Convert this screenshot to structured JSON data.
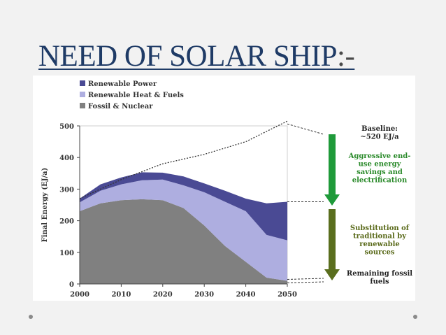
{
  "slide": {
    "title": "NEED OF SOLAR SHIP",
    "title_suffix": ":-"
  },
  "chart_data": {
    "type": "area",
    "title": "",
    "xlabel": "",
    "ylabel": "Final Energy (EJ/a)",
    "xlim": [
      2000,
      2050
    ],
    "ylim": [
      0,
      500
    ],
    "x_ticks": [
      2000,
      2010,
      2020,
      2030,
      2040,
      2050
    ],
    "y_ticks": [
      0,
      100,
      200,
      300,
      400,
      500
    ],
    "x": [
      2000,
      2005,
      2010,
      2015,
      2020,
      2025,
      2030,
      2035,
      2040,
      2045,
      2050
    ],
    "series": [
      {
        "name": "Fossil & Nuclear",
        "color": "#808080",
        "values": [
          230,
          255,
          265,
          268,
          265,
          240,
          185,
          120,
          70,
          20,
          10
        ]
      },
      {
        "name": "Renewable Heat & Fuels",
        "color": "#aeaee0",
        "values": [
          28,
          40,
          50,
          60,
          65,
          72,
          105,
          140,
          160,
          135,
          128
        ]
      },
      {
        "name": "Renewable Power",
        "color": "#4a4a94",
        "values": [
          12,
          20,
          22,
          25,
          22,
          28,
          28,
          35,
          40,
          100,
          122
        ]
      }
    ],
    "baseline_line": {
      "name": "Baseline",
      "x": [
        2000,
        2010,
        2020,
        2030,
        2040,
        2050
      ],
      "values": [
        270,
        330,
        380,
        410,
        450,
        515
      ]
    },
    "legend": {
      "position": "top-left",
      "entries": [
        "Renewable Power",
        "Renewable Heat & Fuels",
        "Fossil & Nuclear"
      ]
    },
    "annotations": [
      {
        "text": [
          "Baseline:",
          "~520 EJ/a"
        ],
        "color": "#222222"
      },
      {
        "text": [
          "Aggressive end-",
          "use energy",
          "savings and",
          "electrification"
        ],
        "color": "#2a8a2a"
      },
      {
        "text": [
          "Substitution of",
          "traditional  by",
          "renewable",
          "sources"
        ],
        "color": "#5a6a1a"
      },
      {
        "text": [
          "Remaining fossil",
          "fuels"
        ],
        "color": "#222222"
      }
    ],
    "arrows": [
      {
        "from": 515,
        "to": 262,
        "color": "#1f9a3a"
      },
      {
        "from": 262,
        "to": 10,
        "color": "#5a6e1e"
      }
    ]
  }
}
